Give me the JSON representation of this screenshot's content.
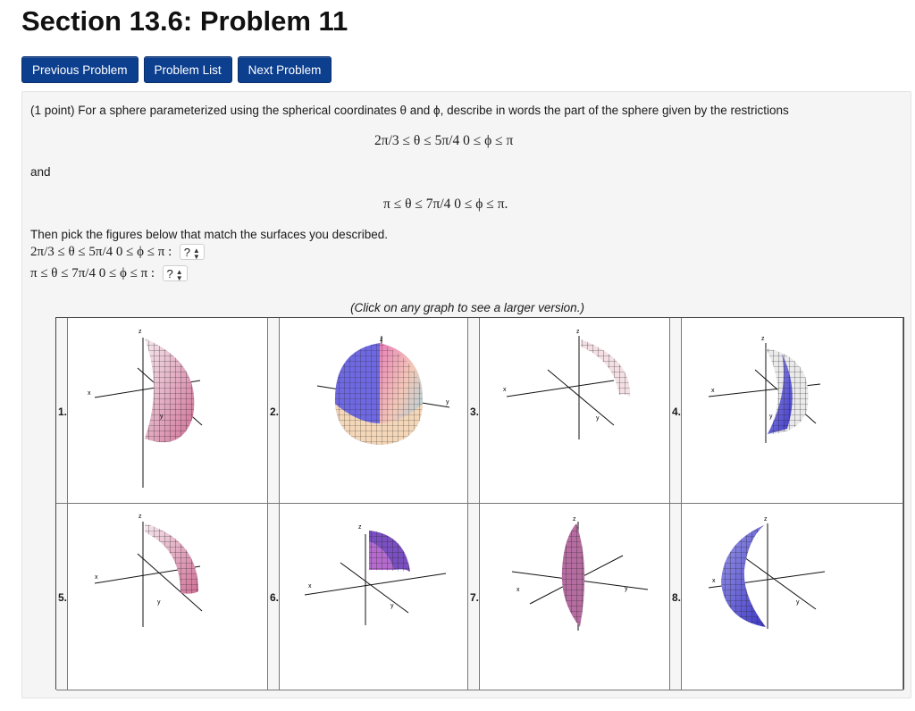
{
  "page": {
    "title": "Section 13.6: Problem 11"
  },
  "nav": {
    "previous": "Previous Problem",
    "list": "Problem List",
    "next": "Next Problem"
  },
  "problem": {
    "intro": "(1 point) For a sphere parameterized using the spherical coordinates θ and ϕ, describe in words the part of the sphere given by the restrictions",
    "restriction1": "2π/3 ≤ θ ≤ 5π/4    0 ≤ ϕ ≤ π",
    "and_text": "and",
    "restriction2": "π ≤ θ ≤ 7π/4    0 ≤ ϕ ≤ π.",
    "pick_text": "Then pick the figures below that match the surfaces you described.",
    "q1_label": "2π/3 ≤ θ ≤ 5π/4   0 ≤ ϕ ≤ π :",
    "q2_label": "π ≤ θ ≤ 7π/4   0 ≤ ϕ ≤ π :",
    "q1_value": "?",
    "q2_value": "?",
    "caption": "(Click on any graph to see a larger version.)"
  },
  "figures": {
    "n1": "1.",
    "n2": "2.",
    "n3": "3.",
    "n4": "4.",
    "n5": "5.",
    "n6": "6.",
    "n7": "7.",
    "n8": "8.",
    "axis_x": "x",
    "axis_y": "y",
    "axis_z": "z"
  },
  "colors": {
    "nav_button": "#0d3f8f",
    "surface_pink": "#d98fb0",
    "surface_blue": "#5a55d8"
  }
}
